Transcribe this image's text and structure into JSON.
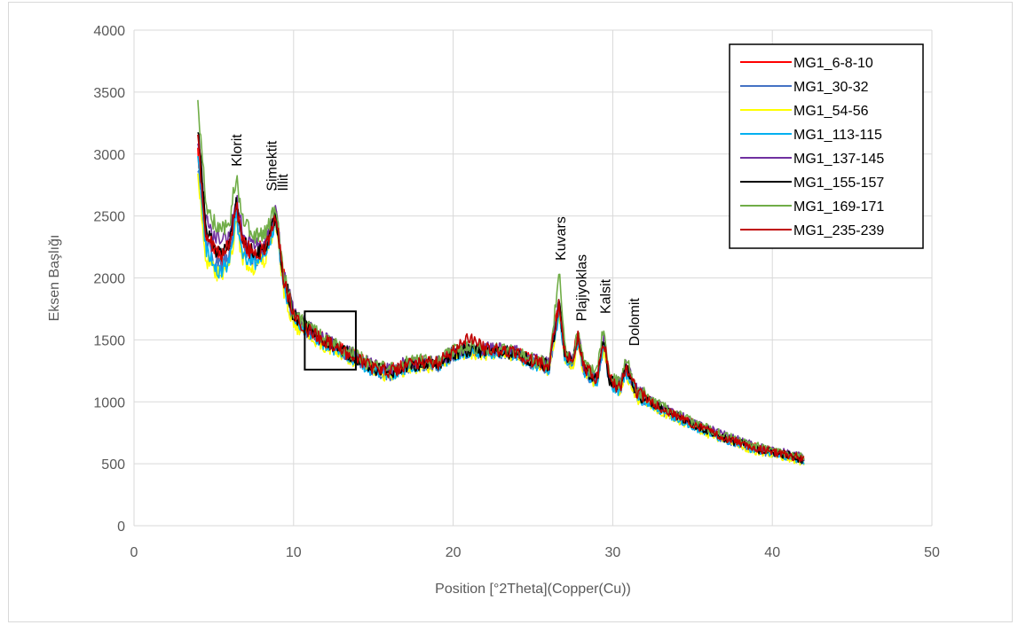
{
  "chart_data": {
    "type": "line",
    "title": "",
    "xlabel": "Position [°2Theta](Copper(Cu))",
    "ylabel": "Eksen Başlığı",
    "xlim": [
      0,
      50
    ],
    "ylim": [
      0,
      4000
    ],
    "xticks": [
      0,
      10,
      20,
      30,
      40,
      50
    ],
    "yticks": [
      0,
      500,
      1000,
      1500,
      2000,
      2500,
      3000,
      3500,
      4000
    ],
    "grid": true,
    "legend_position": "top-right",
    "x": [
      4,
      4.5,
      5,
      5.5,
      6,
      6.4,
      6.8,
      7.5,
      8.2,
      8.9,
      9.3,
      10,
      11,
      12,
      13,
      14,
      15,
      16,
      17,
      18,
      19,
      20,
      21,
      22,
      23,
      24,
      25,
      26,
      26.65,
      27,
      27.5,
      27.8,
      28.2,
      29,
      29.45,
      29.8,
      30.5,
      30.8,
      31.5,
      33,
      35,
      37,
      39,
      41,
      42
    ],
    "series": [
      {
        "name": "MG1_6-8-10",
        "color": "#ff0000",
        "values": [
          3000,
          2350,
          2200,
          2150,
          2250,
          2600,
          2300,
          2200,
          2250,
          2550,
          2050,
          1700,
          1580,
          1500,
          1420,
          1360,
          1280,
          1250,
          1300,
          1320,
          1300,
          1400,
          1430,
          1420,
          1410,
          1390,
          1330,
          1300,
          1820,
          1380,
          1330,
          1560,
          1280,
          1200,
          1500,
          1180,
          1120,
          1300,
          1080,
          960,
          830,
          720,
          630,
          570,
          540
        ]
      },
      {
        "name": "MG1_30-32",
        "color": "#4472c4",
        "values": [
          2900,
          2300,
          2150,
          2100,
          2200,
          2520,
          2250,
          2150,
          2200,
          2500,
          2000,
          1650,
          1550,
          1470,
          1400,
          1330,
          1260,
          1220,
          1270,
          1300,
          1290,
          1380,
          1410,
          1400,
          1400,
          1380,
          1310,
          1270,
          1750,
          1340,
          1290,
          1500,
          1240,
          1160,
          1450,
          1150,
          1090,
          1260,
          1050,
          930,
          800,
          700,
          610,
          560,
          520
        ]
      },
      {
        "name": "MG1_54-56",
        "color": "#ffff00",
        "values": [
          2850,
          2150,
          2050,
          2000,
          2100,
          2450,
          2150,
          2080,
          2150,
          2450,
          1950,
          1620,
          1520,
          1450,
          1380,
          1320,
          1240,
          1210,
          1260,
          1290,
          1280,
          1370,
          1400,
          1390,
          1390,
          1370,
          1300,
          1260,
          1720,
          1330,
          1280,
          1480,
          1230,
          1160,
          1430,
          1140,
          1080,
          1250,
          1040,
          920,
          790,
          690,
          600,
          550,
          510
        ]
      },
      {
        "name": "MG1_113-115",
        "color": "#00b0f0",
        "values": [
          2950,
          2250,
          2100,
          2050,
          2150,
          2500,
          2200,
          2120,
          2180,
          2480,
          1980,
          1640,
          1540,
          1460,
          1390,
          1330,
          1250,
          1220,
          1270,
          1300,
          1290,
          1380,
          1410,
          1400,
          1400,
          1380,
          1310,
          1270,
          1740,
          1340,
          1290,
          1500,
          1240,
          1170,
          1450,
          1150,
          1090,
          1260,
          1050,
          930,
          800,
          700,
          610,
          560,
          520
        ]
      },
      {
        "name": "MG1_137-145",
        "color": "#7030a0",
        "values": [
          3150,
          2450,
          2350,
          2300,
          2350,
          2650,
          2380,
          2250,
          2280,
          2560,
          2080,
          1720,
          1600,
          1510,
          1430,
          1370,
          1290,
          1260,
          1310,
          1330,
          1310,
          1410,
          1440,
          1430,
          1420,
          1400,
          1340,
          1310,
          1830,
          1390,
          1340,
          1570,
          1290,
          1210,
          1520,
          1190,
          1130,
          1310,
          1090,
          970,
          840,
          730,
          640,
          580,
          550
        ]
      },
      {
        "name": "MG1_155-157",
        "color": "#000000",
        "values": [
          3200,
          2400,
          2250,
          2200,
          2300,
          2580,
          2280,
          2200,
          2220,
          2520,
          2050,
          1700,
          1580,
          1490,
          1420,
          1350,
          1270,
          1240,
          1290,
          1310,
          1300,
          1390,
          1420,
          1410,
          1410,
          1390,
          1320,
          1290,
          1800,
          1370,
          1320,
          1550,
          1270,
          1190,
          1500,
          1170,
          1110,
          1290,
          1070,
          950,
          820,
          710,
          620,
          570,
          530
        ]
      },
      {
        "name": "MG1_169-171",
        "color": "#70ad47",
        "values": [
          3420,
          2600,
          2450,
          2400,
          2450,
          2830,
          2450,
          2350,
          2350,
          2600,
          2100,
          1720,
          1600,
          1510,
          1430,
          1370,
          1290,
          1260,
          1310,
          1340,
          1320,
          1410,
          1440,
          1430,
          1430,
          1410,
          1340,
          1300,
          2040,
          1400,
          1340,
          1600,
          1290,
          1220,
          1630,
          1200,
          1140,
          1370,
          1100,
          980,
          840,
          730,
          640,
          580,
          560
        ]
      },
      {
        "name": "MG1_235-239",
        "color": "#c00000",
        "values": [
          3100,
          2380,
          2230,
          2180,
          2280,
          2600,
          2280,
          2190,
          2230,
          2530,
          2040,
          1690,
          1570,
          1490,
          1410,
          1350,
          1270,
          1240,
          1290,
          1320,
          1310,
          1400,
          1520,
          1420,
          1410,
          1390,
          1330,
          1290,
          1800,
          1370,
          1320,
          1540,
          1270,
          1190,
          1490,
          1170,
          1110,
          1290,
          1070,
          950,
          820,
          710,
          620,
          570,
          540
        ]
      }
    ],
    "annotations": [
      {
        "text": "Klorit",
        "x": 6.4,
        "y": 2900
      },
      {
        "text": "Simektit",
        "x": 8.6,
        "y": 2700
      },
      {
        "text": "İllit",
        "x": 9.3,
        "y": 2700
      },
      {
        "text": "Kuvars",
        "x": 26.7,
        "y": 2140
      },
      {
        "text": "Plajiyoklas",
        "x": 28.0,
        "y": 1650
      },
      {
        "text": "Kalsit",
        "x": 29.5,
        "y": 1710
      },
      {
        "text": "Dolomit",
        "x": 31.3,
        "y": 1450
      }
    ],
    "highlight_box": {
      "x0": 10.7,
      "x1": 13.9,
      "y0": 1260,
      "y1": 1730
    }
  }
}
